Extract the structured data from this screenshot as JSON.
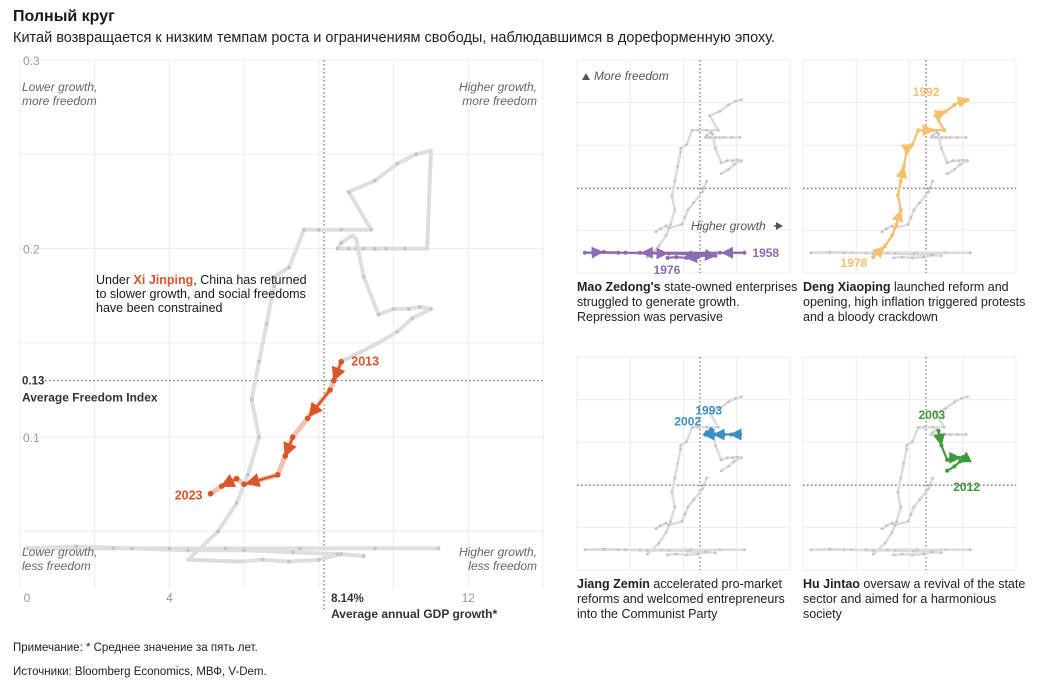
{
  "title": "Полный круг",
  "subtitle": "Китай возвращается к низким темпам роста и ограничениям свободы, наблюдавшимся в дореформенную эпоху.",
  "note": "Примечание: * Среднее значение за пять лет.",
  "sources": "Источники: Bloomberg Economics, МВФ, V-Dem.",
  "colors": {
    "background_path": "#dcdcdc",
    "background_dots": "#c4c4c4",
    "xi": "#d9562b",
    "xi_light": "#f3c2ae",
    "mao": "#8e6bb0",
    "deng": "#f5c070",
    "jiang": "#3b8fc4",
    "hu": "#3d9a3a",
    "grid": "#ececec",
    "reference": "#555555"
  },
  "main_chart": {
    "quadrants": {
      "top_left": "Lower growth,\nmore freedom",
      "top_right": "Higher growth,\nmore freedom",
      "bottom_left": "Lower growth,\nless freedom",
      "bottom_right": "Higher growth,\nless freedom"
    },
    "annotation_prefix": "Under ",
    "annotation_name": "Xi Jinping",
    "annotation_rest": ", China has returned to slower growth, and social freedoms have been constrained",
    "label_start": "2013",
    "label_end": "2023",
    "avg_freedom_value": "0.13",
    "avg_freedom_label": "Average Freedom Index",
    "avg_growth_value": "8.14%",
    "avg_growth_label": "Average annual GDP growth*"
  },
  "small_multiples": {
    "more_freedom_label": "More freedom",
    "higher_growth_label": "Higher growth",
    "panels": [
      {
        "leader": "Mao Zedong's",
        "text": " state-owned enterprises struggled to generate growth. Repression was pervasive",
        "label_a": "1976",
        "label_b": "1958",
        "color_key": "mao"
      },
      {
        "leader": "Deng Xiaoping",
        "text": " launched reform and opening, high inflation triggered protests and a bloody crackdown",
        "label_a": "1978",
        "label_b": "1992",
        "color_key": "deng"
      },
      {
        "leader": "Jiang Zemin",
        "text": " accelerated pro-market reforms and welcomed entrepreneurs into the Communist Party",
        "label_a": "1993",
        "label_b": "2002",
        "color_key": "jiang"
      },
      {
        "leader": "Hu Jintao",
        "text": " oversaw a revival of the state sector and aimed for a harmonious society",
        "label_a": "2003",
        "label_b": "2012",
        "color_key": "hu"
      }
    ]
  },
  "chart_data": {
    "type": "line",
    "title": "Полный круг",
    "subtitle": "Китай возвращается к низким темпам роста и ограничениям свободы, наблюдавшимся в дореформенную эпоху.",
    "xlabel": "Average annual GDP growth*",
    "ylabel": "",
    "xlim": [
      0,
      14
    ],
    "ylim": [
      0.02,
      0.3
    ],
    "x_ticks": [
      0,
      4,
      12
    ],
    "x_tick_labels": [
      "0",
      "4",
      "12"
    ],
    "y_ticks": [
      0.1,
      0.2,
      0.3
    ],
    "y_tick_labels": [
      "0.1",
      "0.2",
      "0.3"
    ],
    "reference_lines": {
      "x": 8.14,
      "y": 0.13
    },
    "grid": true,
    "series": [
      {
        "name": "Mao Zedong",
        "x": [
          11.2,
          9.5,
          7.5,
          5.5,
          4.0,
          2.5,
          0.2,
          1.5,
          3.0,
          4.5,
          6.0,
          7.3,
          8.5,
          9.2,
          8.6,
          8.0,
          7.2,
          6.5,
          5.9
        ],
        "y": [
          0.041,
          0.041,
          0.041,
          0.041,
          0.041,
          0.041,
          0.041,
          0.042,
          0.041,
          0.04,
          0.04,
          0.039,
          0.038,
          0.037,
          0.038,
          0.035,
          0.034,
          0.035,
          0.034
        ],
        "label_start": "1958",
        "label_end": "1976"
      },
      {
        "name": "Deng Xiaoping",
        "x": [
          4.5,
          5.3,
          5.8,
          6.1,
          6.4,
          6.2,
          6.4,
          6.6,
          6.8,
          6.8,
          7.2,
          7.6,
          8.0,
          8.6,
          9.4,
          8.8,
          9.5,
          10.1,
          10.6,
          11.0
        ],
        "y": [
          0.035,
          0.05,
          0.065,
          0.08,
          0.1,
          0.12,
          0.14,
          0.16,
          0.18,
          0.185,
          0.19,
          0.21,
          0.21,
          0.21,
          0.21,
          0.23,
          0.236,
          0.245,
          0.25,
          0.252
        ],
        "label_start": "1978",
        "label_end": "1992"
      },
      {
        "name": "Jiang Zemin",
        "x": [
          10.9,
          10.3,
          9.8,
          9.5,
          9.2,
          9.0,
          8.8,
          8.5,
          8.6,
          8.9
        ],
        "y": [
          0.2,
          0.2,
          0.2,
          0.2,
          0.2,
          0.2,
          0.2,
          0.2,
          0.203,
          0.207
        ],
        "label_start": "1993",
        "label_end": "2002"
      },
      {
        "name": "Hu Jintao",
        "x": [
          9.0,
          9.2,
          9.6,
          10.0,
          10.4,
          10.7,
          11.0,
          10.5,
          10.1,
          9.6
        ],
        "y": [
          0.205,
          0.185,
          0.165,
          0.168,
          0.168,
          0.169,
          0.168,
          0.163,
          0.156,
          0.15
        ],
        "label_start": "2003",
        "label_end": "2012"
      },
      {
        "name": "Xi Jinping",
        "x": [
          8.6,
          8.4,
          8.3,
          7.7,
          7.3,
          7.1,
          6.9,
          6.0,
          5.8,
          5.4,
          5.1
        ],
        "y": [
          0.14,
          0.13,
          0.125,
          0.11,
          0.1,
          0.09,
          0.08,
          0.075,
          0.078,
          0.074,
          0.07
        ],
        "label_start": "2013",
        "label_end": "2023"
      }
    ]
  }
}
